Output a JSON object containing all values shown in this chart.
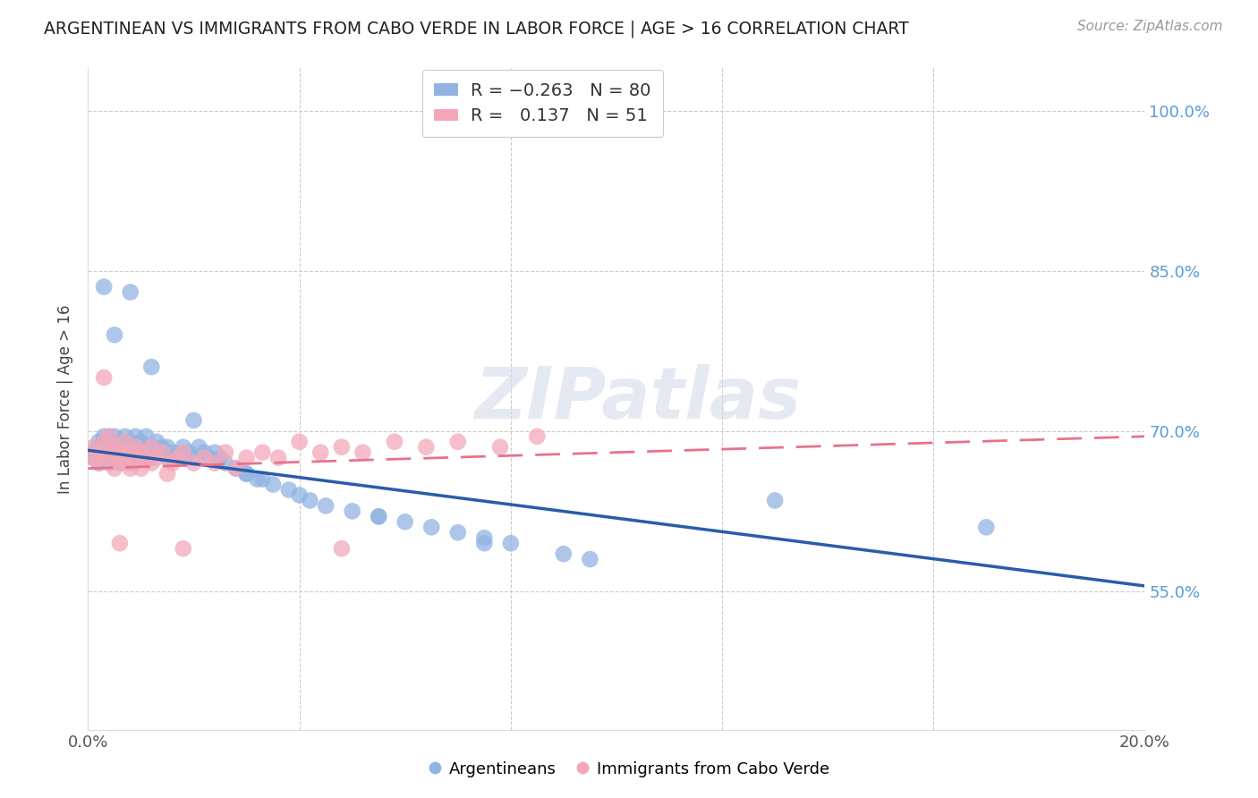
{
  "title": "ARGENTINEAN VS IMMIGRANTS FROM CABO VERDE IN LABOR FORCE | AGE > 16 CORRELATION CHART",
  "source": "Source: ZipAtlas.com",
  "ylabel": "In Labor Force | Age > 16",
  "xlim": [
    0.0,
    0.2
  ],
  "ylim": [
    0.42,
    1.04
  ],
  "yticks": [
    0.55,
    0.7,
    0.85,
    1.0
  ],
  "ytick_labels": [
    "55.0%",
    "70.0%",
    "85.0%",
    "100.0%"
  ],
  "xticks": [
    0.0,
    0.04,
    0.08,
    0.12,
    0.16,
    0.2
  ],
  "xtick_labels": [
    "0.0%",
    "",
    "",
    "",
    "",
    "20.0%"
  ],
  "blue_color": "#92b4e3",
  "pink_color": "#f4a7b9",
  "blue_line_color": "#2a5caa",
  "pink_line_color": "#e8728a",
  "R_blue": -0.263,
  "N_blue": 80,
  "R_pink": 0.137,
  "N_pink": 51,
  "blue_x": [
    0.001,
    0.001,
    0.002,
    0.002,
    0.002,
    0.003,
    0.003,
    0.003,
    0.003,
    0.004,
    0.004,
    0.004,
    0.004,
    0.005,
    0.005,
    0.005,
    0.005,
    0.006,
    0.006,
    0.006,
    0.006,
    0.007,
    0.007,
    0.007,
    0.008,
    0.008,
    0.008,
    0.009,
    0.009,
    0.009,
    0.01,
    0.01,
    0.011,
    0.011,
    0.012,
    0.012,
    0.013,
    0.013,
    0.014,
    0.015,
    0.015,
    0.016,
    0.017,
    0.018,
    0.019,
    0.02,
    0.021,
    0.022,
    0.023,
    0.024,
    0.025,
    0.026,
    0.028,
    0.03,
    0.032,
    0.033,
    0.035,
    0.038,
    0.04,
    0.042,
    0.045,
    0.05,
    0.055,
    0.06,
    0.065,
    0.07,
    0.075,
    0.08,
    0.09,
    0.095,
    0.003,
    0.005,
    0.008,
    0.012,
    0.02,
    0.03,
    0.055,
    0.075,
    0.13,
    0.17
  ],
  "blue_y": [
    0.675,
    0.68,
    0.67,
    0.685,
    0.69,
    0.68,
    0.675,
    0.69,
    0.695,
    0.67,
    0.68,
    0.69,
    0.695,
    0.68,
    0.675,
    0.69,
    0.695,
    0.67,
    0.68,
    0.685,
    0.69,
    0.675,
    0.68,
    0.695,
    0.67,
    0.685,
    0.69,
    0.675,
    0.68,
    0.695,
    0.675,
    0.69,
    0.685,
    0.695,
    0.675,
    0.685,
    0.68,
    0.69,
    0.685,
    0.675,
    0.685,
    0.68,
    0.675,
    0.685,
    0.68,
    0.675,
    0.685,
    0.68,
    0.675,
    0.68,
    0.675,
    0.67,
    0.665,
    0.66,
    0.655,
    0.655,
    0.65,
    0.645,
    0.64,
    0.635,
    0.63,
    0.625,
    0.62,
    0.615,
    0.61,
    0.605,
    0.6,
    0.595,
    0.585,
    0.58,
    0.835,
    0.79,
    0.83,
    0.76,
    0.71,
    0.66,
    0.62,
    0.595,
    0.635,
    0.61
  ],
  "pink_x": [
    0.001,
    0.001,
    0.002,
    0.002,
    0.003,
    0.003,
    0.004,
    0.004,
    0.005,
    0.005,
    0.005,
    0.006,
    0.006,
    0.007,
    0.007,
    0.008,
    0.008,
    0.009,
    0.009,
    0.01,
    0.01,
    0.011,
    0.012,
    0.012,
    0.013,
    0.014,
    0.015,
    0.016,
    0.017,
    0.018,
    0.02,
    0.022,
    0.024,
    0.026,
    0.028,
    0.03,
    0.033,
    0.036,
    0.04,
    0.044,
    0.048,
    0.052,
    0.058,
    0.064,
    0.07,
    0.078,
    0.085,
    0.003,
    0.006,
    0.018,
    0.048
  ],
  "pink_y": [
    0.675,
    0.685,
    0.67,
    0.68,
    0.675,
    0.69,
    0.68,
    0.695,
    0.665,
    0.675,
    0.685,
    0.67,
    0.68,
    0.675,
    0.69,
    0.665,
    0.68,
    0.675,
    0.685,
    0.665,
    0.68,
    0.675,
    0.67,
    0.685,
    0.675,
    0.68,
    0.66,
    0.67,
    0.675,
    0.68,
    0.67,
    0.675,
    0.67,
    0.68,
    0.665,
    0.675,
    0.68,
    0.675,
    0.69,
    0.68,
    0.685,
    0.68,
    0.69,
    0.685,
    0.69,
    0.685,
    0.695,
    0.75,
    0.595,
    0.59,
    0.59
  ]
}
